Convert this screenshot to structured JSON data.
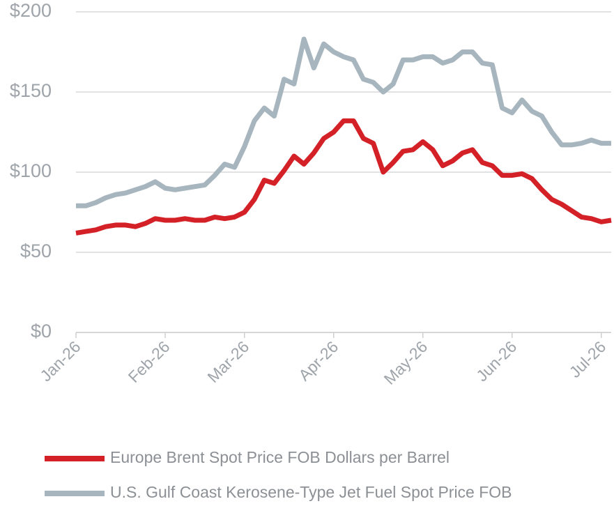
{
  "chart_data": {
    "type": "line",
    "categories": [
      "Jan-26",
      null,
      null,
      null,
      null,
      null,
      null,
      null,
      null,
      "Feb-26",
      null,
      null,
      null,
      null,
      null,
      null,
      null,
      "Mar-26",
      null,
      null,
      null,
      null,
      null,
      null,
      null,
      null,
      "Apr-26",
      null,
      null,
      null,
      null,
      null,
      null,
      null,
      null,
      "May-26",
      null,
      null,
      null,
      null,
      null,
      null,
      null,
      null,
      "Jun-26",
      null,
      null,
      null,
      null,
      null,
      null,
      null,
      null,
      "Jul-26",
      null
    ],
    "series": [
      {
        "name": "Europe Brent Spot Price FOB Dollars per Barrel",
        "color": "#d42027",
        "values": [
          62,
          63,
          64,
          66,
          67,
          67,
          66,
          68,
          71,
          70,
          70,
          71,
          70,
          70,
          72,
          71,
          72,
          75,
          83,
          95,
          93,
          101,
          110,
          105,
          112,
          121,
          125,
          132,
          132,
          121,
          118,
          100,
          106,
          113,
          114,
          119,
          114,
          104,
          107,
          112,
          114,
          106,
          104,
          98,
          98,
          99,
          96,
          89,
          83,
          80,
          76,
          72,
          71,
          69,
          70
        ]
      },
      {
        "name": "U.S. Gulf Coast Kerosene-Type Jet Fuel Spot Price FOB",
        "color": "#a6b5be",
        "values": [
          79,
          79,
          81,
          84,
          86,
          87,
          89,
          91,
          94,
          90,
          89,
          90,
          91,
          92,
          98,
          105,
          103,
          116,
          132,
          140,
          135,
          158,
          155,
          183,
          165,
          180,
          175,
          172,
          170,
          158,
          156,
          150,
          155,
          170,
          170,
          172,
          172,
          168,
          170,
          175,
          175,
          168,
          167,
          140,
          137,
          145,
          138,
          135,
          125,
          117,
          117,
          118,
          120,
          118,
          118
        ]
      }
    ],
    "ylim": [
      0,
      200
    ],
    "yticks": [
      {
        "value": 0,
        "label": "$0"
      },
      {
        "value": 50,
        "label": "$50"
      },
      {
        "value": 100,
        "label": "$100"
      },
      {
        "value": 150,
        "label": "$150"
      },
      {
        "value": 200,
        "label": "$200"
      }
    ],
    "grid": true,
    "legend": "bottom"
  }
}
